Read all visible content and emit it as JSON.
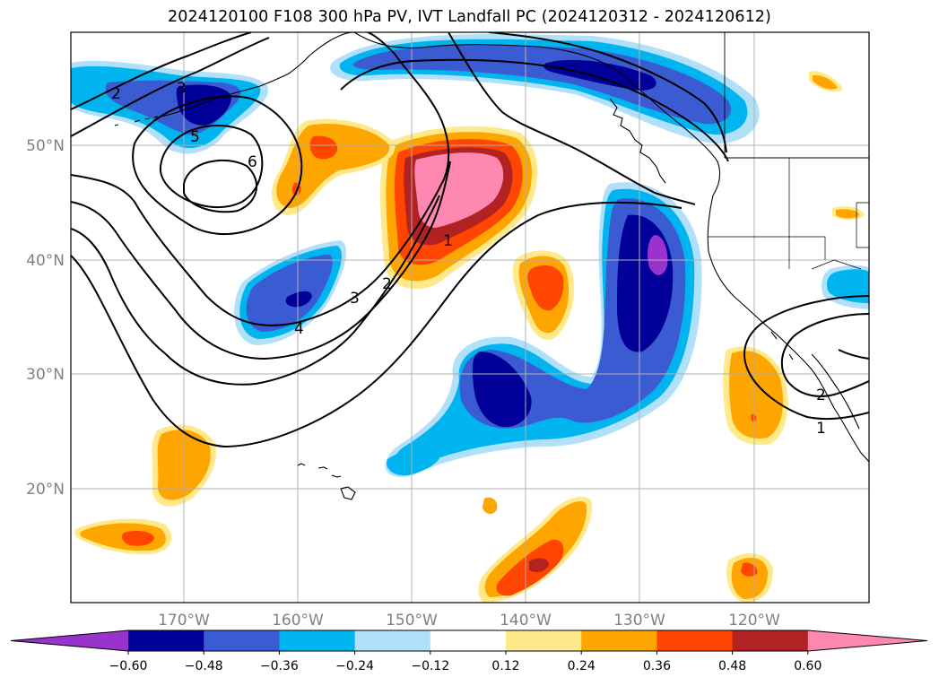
{
  "title": "2024120100 F108 300 hPa PV, IVT Landfall PC (2024120312 - 2024120612)",
  "lat_labels": [
    "50°N",
    "40°N",
    "30°N",
    "20°N"
  ],
  "lon_labels": [
    "170°W",
    "160°W",
    "150°W",
    "140°W",
    "130°W",
    "120°W"
  ],
  "colorbar": {
    "ticks": [
      "−0.60",
      "−0.48",
      "−0.36",
      "−0.24",
      "−0.12",
      "0.12",
      "0.24",
      "0.36",
      "0.48",
      "0.60"
    ],
    "colors": [
      "#9933cc",
      "#000099",
      "#3a5bd1",
      "#00b4f0",
      "#b0e0fa",
      "#ffffff",
      "#ffe98a",
      "#ffa500",
      "#ff4500",
      "#b22222",
      "#ff88b0"
    ]
  },
  "contour_labels": [
    "2",
    "3",
    "5",
    "6",
    "1",
    "2",
    "3",
    "4",
    "2",
    "1"
  ]
}
